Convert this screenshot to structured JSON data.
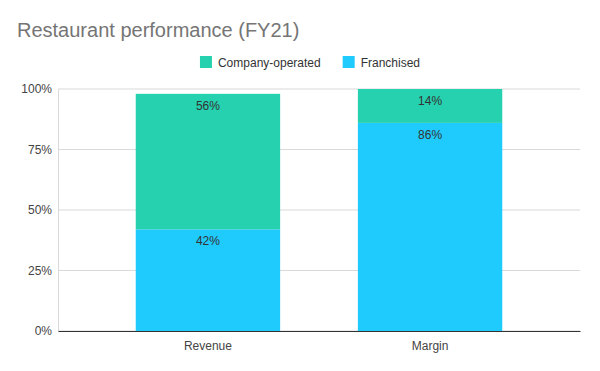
{
  "chart_data": {
    "type": "bar",
    "title": "Restaurant performance (FY21)",
    "categories": [
      "Revenue",
      "Margin"
    ],
    "series": [
      {
        "name": "Company-operated",
        "color": "#25d1ae",
        "values": [
          56,
          14
        ],
        "value_labels": [
          "56%",
          "14%"
        ]
      },
      {
        "name": "Franchised",
        "color": "#1fcbfd",
        "values": [
          42,
          86
        ],
        "value_labels": [
          "42%",
          "86%"
        ]
      }
    ],
    "ylim": [
      0,
      100
    ],
    "yticks": [
      {
        "value": 0,
        "label": "0%"
      },
      {
        "value": 25,
        "label": "25%"
      },
      {
        "value": 50,
        "label": "50%"
      },
      {
        "value": 75,
        "label": "75%"
      },
      {
        "value": 100,
        "label": "100%"
      }
    ],
    "grid": true,
    "stacked": true,
    "data_labels": true,
    "legend": "top"
  }
}
